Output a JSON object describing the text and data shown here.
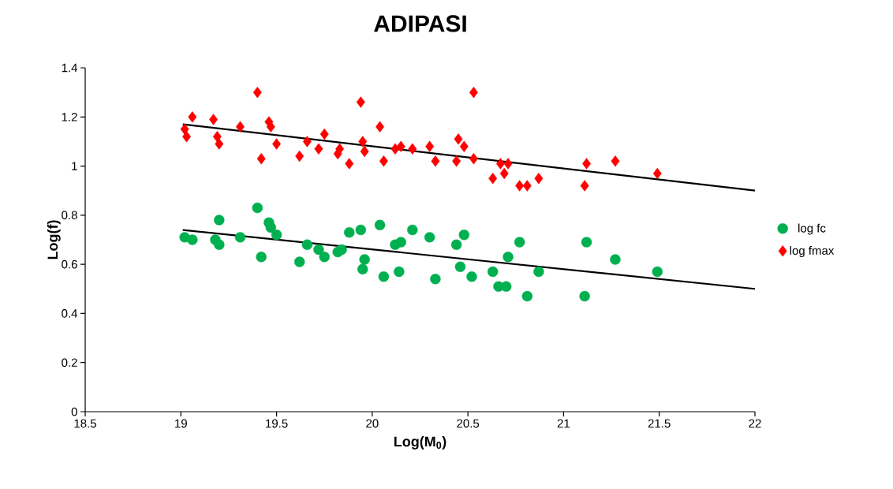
{
  "chart_data": {
    "type": "scatter",
    "title": "ADIPASI",
    "xlabel": "Log(M$_{0}$)",
    "ylabel": "Log(f)",
    "xlim": [
      18.5,
      22
    ],
    "ylim": [
      0,
      1.4
    ],
    "xticks": [
      18.5,
      19,
      19.5,
      20,
      20.5,
      21,
      21.5,
      22
    ],
    "yticks": [
      0,
      0.2,
      0.4,
      0.6,
      0.8,
      1,
      1.2,
      1.4
    ],
    "legend": "right",
    "series": [
      {
        "name": "log fc",
        "color": "#00b050",
        "marker": "circle",
        "x": [
          19.02,
          19.06,
          19.2,
          19.18,
          19.2,
          19.31,
          19.4,
          19.42,
          19.46,
          19.47,
          19.5,
          19.62,
          19.66,
          19.72,
          19.75,
          19.82,
          19.84,
          19.88,
          19.94,
          19.96,
          19.95,
          20.04,
          20.06,
          20.12,
          20.15,
          20.14,
          20.21,
          20.3,
          20.33,
          20.44,
          20.48,
          20.46,
          20.52,
          20.77,
          20.71,
          20.63,
          20.66,
          20.7,
          20.81,
          20.87,
          21.12,
          21.11,
          21.27,
          21.49
        ],
        "values": [
          0.71,
          0.7,
          0.78,
          0.7,
          0.68,
          0.71,
          0.83,
          0.63,
          0.77,
          0.75,
          0.72,
          0.61,
          0.68,
          0.66,
          0.63,
          0.65,
          0.66,
          0.73,
          0.74,
          0.62,
          0.58,
          0.76,
          0.55,
          0.68,
          0.69,
          0.57,
          0.74,
          0.71,
          0.54,
          0.68,
          0.72,
          0.59,
          0.55,
          0.69,
          0.63,
          0.57,
          0.51,
          0.51,
          0.47,
          0.57,
          0.69,
          0.47,
          0.62,
          0.57
        ]
      },
      {
        "name": "log fmax",
        "color": "#ff0000",
        "marker": "diamond",
        "x": [
          19.02,
          19.03,
          19.06,
          19.17,
          19.19,
          19.2,
          19.31,
          19.4,
          19.42,
          19.46,
          19.47,
          19.5,
          19.62,
          19.66,
          19.72,
          19.75,
          19.82,
          19.83,
          19.88,
          19.94,
          19.95,
          19.96,
          20.04,
          20.06,
          20.12,
          20.15,
          20.21,
          20.3,
          20.33,
          20.44,
          20.45,
          20.48,
          20.53,
          20.53,
          20.63,
          20.67,
          20.69,
          20.71,
          20.77,
          20.81,
          20.87,
          21.12,
          21.11,
          21.27,
          21.49
        ],
        "values": [
          1.15,
          1.12,
          1.2,
          1.19,
          1.12,
          1.09,
          1.16,
          1.3,
          1.03,
          1.18,
          1.16,
          1.09,
          1.04,
          1.1,
          1.07,
          1.13,
          1.05,
          1.07,
          1.01,
          1.26,
          1.1,
          1.06,
          1.16,
          1.02,
          1.07,
          1.08,
          1.07,
          1.08,
          1.02,
          1.02,
          1.11,
          1.08,
          1.3,
          1.03,
          0.95,
          1.01,
          0.97,
          1.01,
          0.92,
          0.92,
          0.95,
          1.01,
          0.92,
          1.02,
          0.97
        ]
      },
      {
        "type": "line",
        "color": "#000000",
        "marker": "none",
        "x": [
          19.01,
          22
        ],
        "values": [
          0.74,
          0.5
        ]
      },
      {
        "type": "line",
        "color": "#000000",
        "marker": "none",
        "x": [
          19.01,
          22
        ],
        "values": [
          1.17,
          0.9
        ]
      }
    ]
  }
}
